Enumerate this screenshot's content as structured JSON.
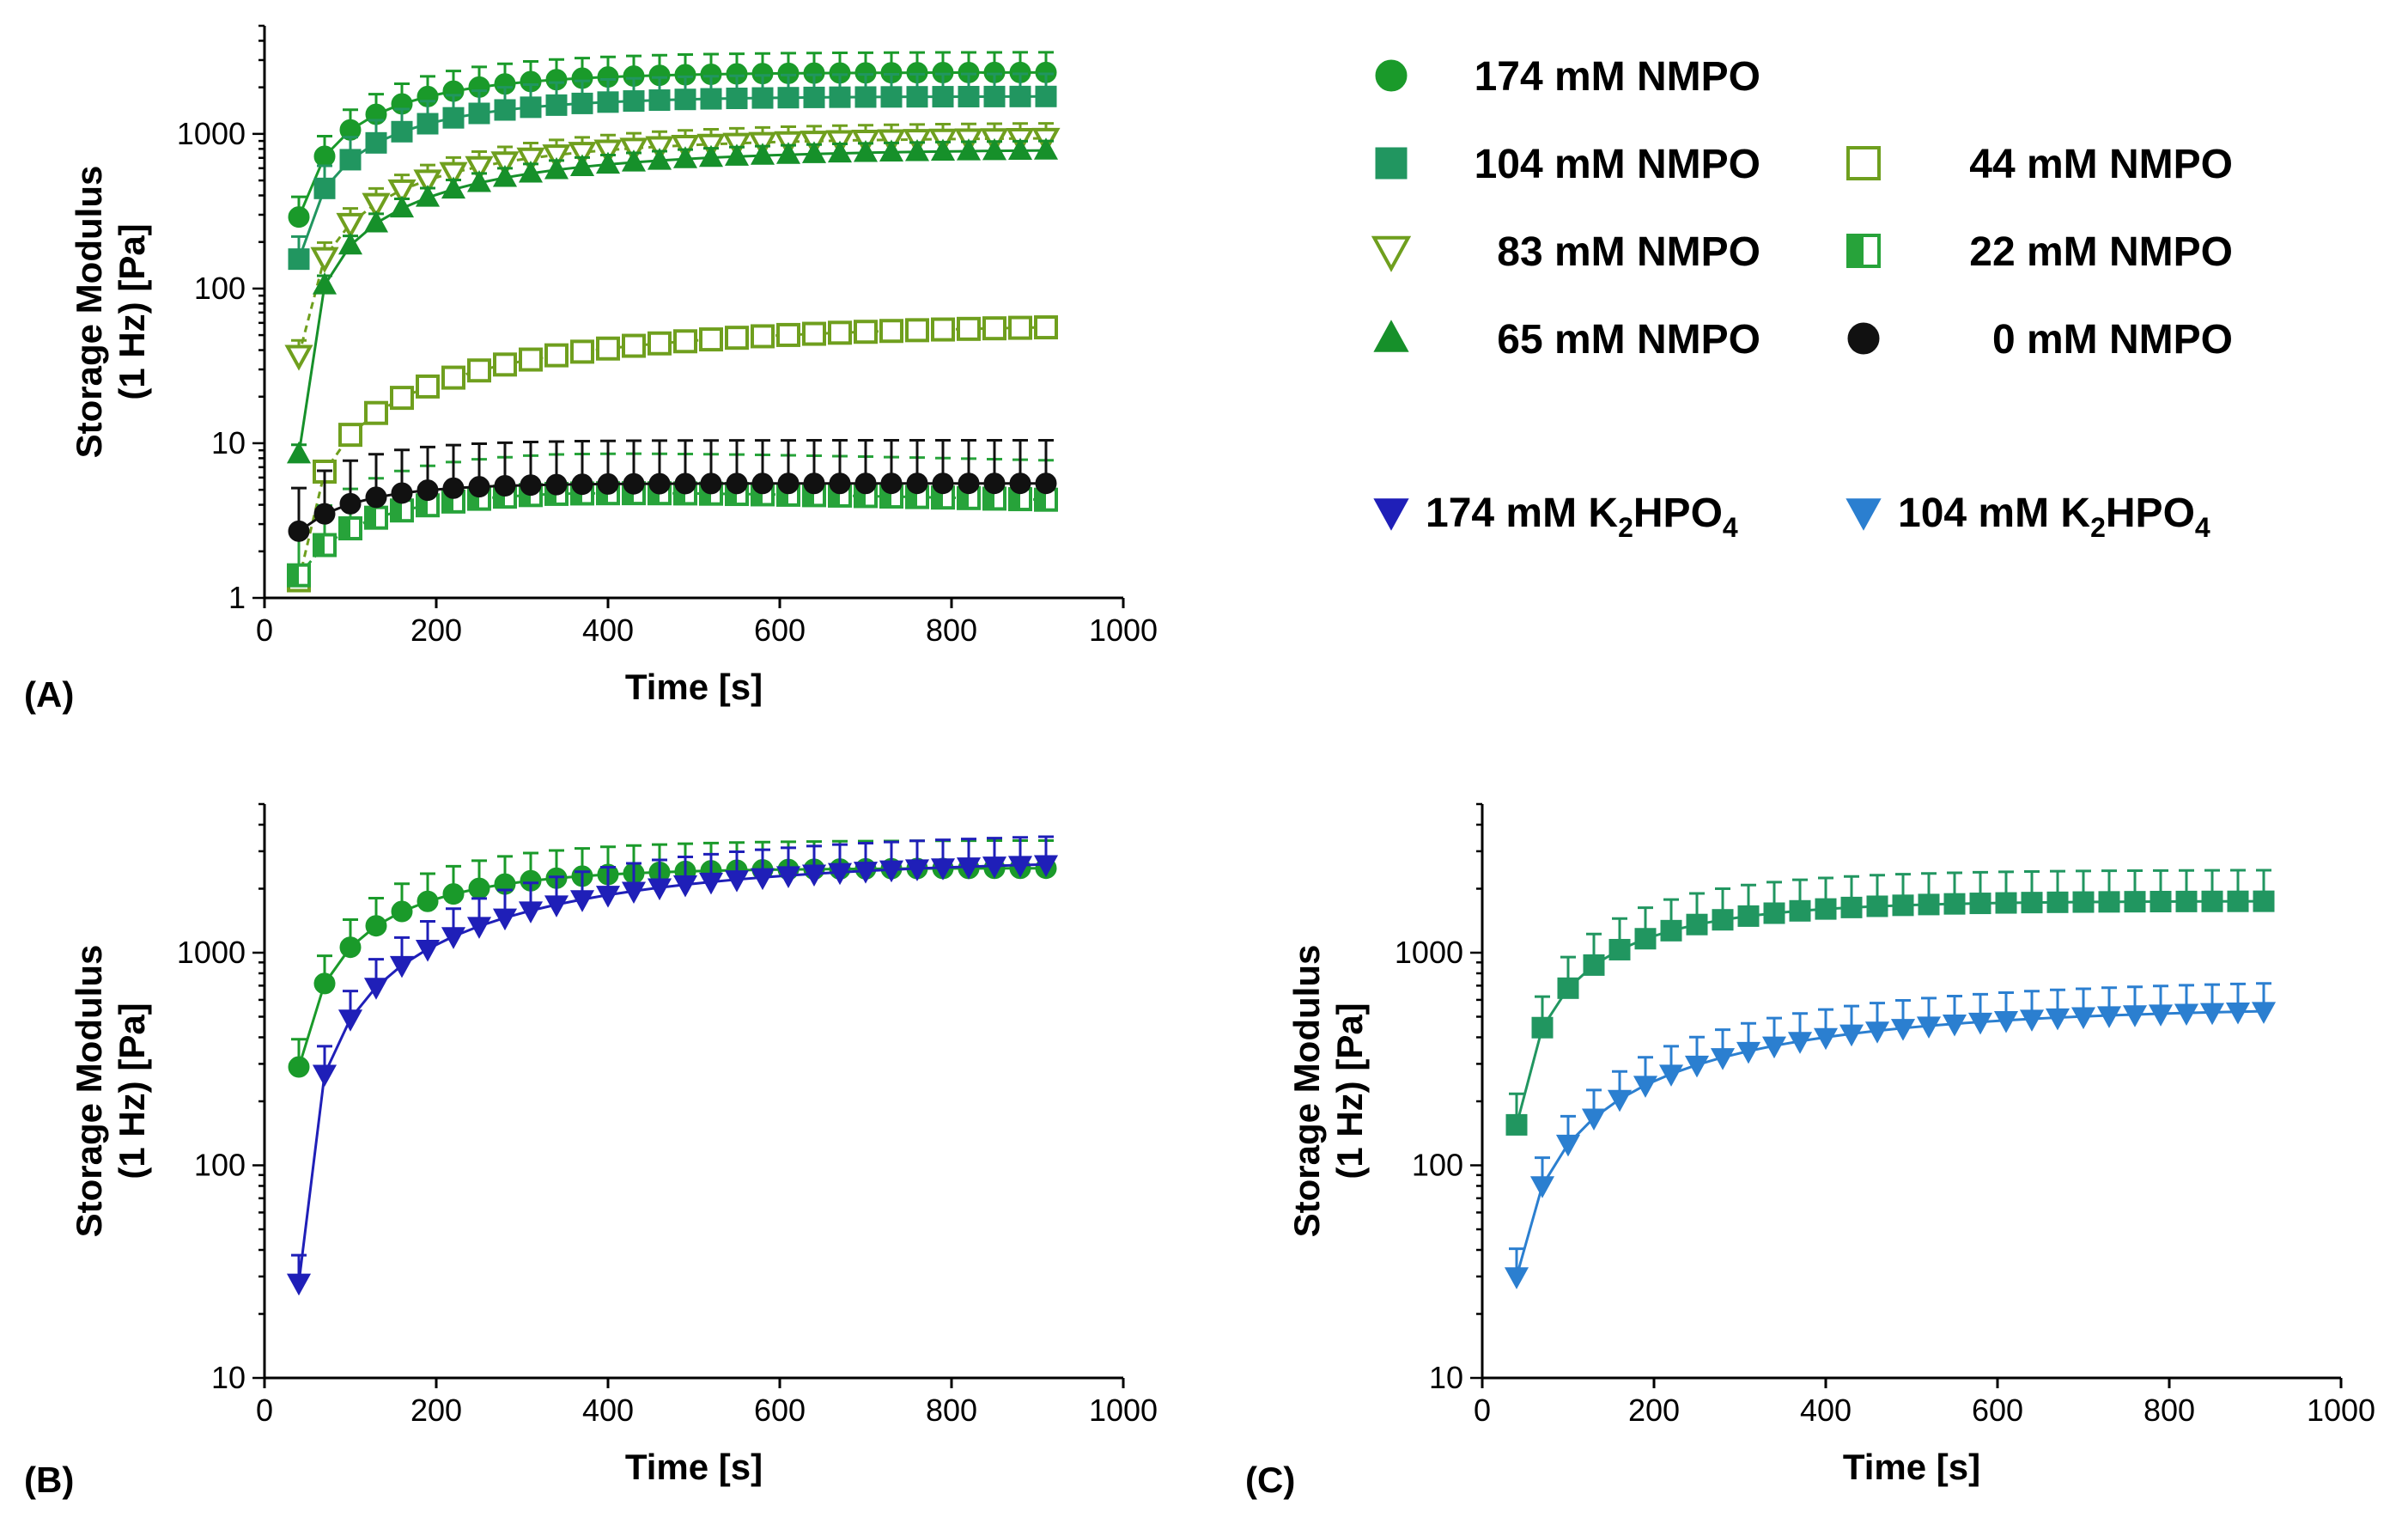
{
  "figure": {
    "panel_labels": [
      "(A)",
      "(B)",
      "(C)"
    ]
  },
  "legend": {
    "items": [
      {
        "label": "174 mM NMPO",
        "marker": "circle",
        "filled": true,
        "color": "#1a9a2a"
      },
      {
        "label": "104 mM NMPO",
        "marker": "square",
        "filled": true,
        "color": "#219660"
      },
      {
        "label": "44 mM NMPO",
        "marker": "square",
        "filled": false,
        "color": "#6f9f1e"
      },
      {
        "label": "83 mM NMPO",
        "marker": "triangle-down",
        "filled": false,
        "color": "#6f9f1e"
      },
      {
        "label": "22 mM NMPO",
        "marker": "square-half",
        "filled": false,
        "color": "#27a33a"
      },
      {
        "label": "65 mM NMPO",
        "marker": "triangle-up",
        "filled": true,
        "color": "#16902a"
      },
      {
        "label": "0 mM NMPO",
        "marker": "circle",
        "filled": true,
        "color": "#111111"
      }
    ],
    "salt_items": [
      {
        "label_main": "174 mM K",
        "sub1": "2",
        "mid": "HPO",
        "sub2": "4",
        "marker": "triangle-down",
        "filled": true,
        "color": "#1f1fb8"
      },
      {
        "label_main": "104 mM K",
        "sub1": "2",
        "mid": "HPO",
        "sub2": "4",
        "marker": "triangle-down",
        "filled": true,
        "color": "#2b7fd0"
      }
    ]
  },
  "chart_data": [
    {
      "panel": "(A)",
      "type": "scatter",
      "xlabel": "Time [s]",
      "ylabel_line1": "Storage Modulus",
      "ylabel_line2": "(1 Hz) [Pa]",
      "xlim": [
        0,
        1000
      ],
      "ylim": [
        1,
        5000
      ],
      "yscale": "log",
      "x_ticks": [
        "0",
        "200",
        "400",
        "600",
        "800",
        "1000"
      ],
      "y_ticks": [
        "1",
        "10",
        "100",
        "1000"
      ],
      "series": [
        {
          "name": "174 mM NMPO",
          "A": 2500,
          "k": 140,
          "y0": 290,
          "err": 0.35
        },
        {
          "name": "104 mM NMPO",
          "A": 1750,
          "k": 150,
          "y0": 155,
          "err": 0.4
        },
        {
          "name": "83 mM NMPO",
          "A": 950,
          "k": 210,
          "y0": 37,
          "err": 0.25
        },
        {
          "name": "65 mM NMPO",
          "A": 800,
          "k": 230,
          "y0": 8.5,
          "err": 0.15
        },
        {
          "name": "44 mM NMPO",
          "A": 60,
          "k": 320,
          "y0": 1.3,
          "err": 0.12
        },
        {
          "name": "22 mM NMPO",
          "A": 4.5,
          "k": 120,
          "y0": 1.4,
          "err": 0.8,
          "peak": 5.0
        },
        {
          "name": "0 mM NMPO",
          "A": 5.5,
          "k": 90,
          "y0": 2.7,
          "err": 0.9
        }
      ]
    },
    {
      "panel": "(B)",
      "type": "scatter",
      "xlabel": "Time [s]",
      "ylabel_line1": "Storage Modulus",
      "ylabel_line2": "(1 Hz) [Pa]",
      "xlim": [
        0,
        1000
      ],
      "ylim": [
        10,
        5000
      ],
      "yscale": "log",
      "x_ticks": [
        "0",
        "200",
        "400",
        "600",
        "800",
        "1000"
      ],
      "y_ticks": [
        "10",
        "100",
        "1000"
      ],
      "series": [
        {
          "name": "174 mM NMPO",
          "A": 2500,
          "k": 140,
          "y0": 290,
          "err": 0.35
        },
        {
          "name": "174 mM K2HPO4",
          "A": 2800,
          "k": 330,
          "y0": 28,
          "err": 0.35
        }
      ]
    },
    {
      "panel": "(C)",
      "type": "scatter",
      "xlabel": "Time [s]",
      "ylabel_line1": "Storage Modulus",
      "ylabel_line2": "(1 Hz) [Pa]",
      "xlim": [
        0,
        1000
      ],
      "ylim": [
        10,
        5000
      ],
      "yscale": "log",
      "x_ticks": [
        "0",
        "200",
        "400",
        "600",
        "800",
        "1000"
      ],
      "y_ticks": [
        "10",
        "100",
        "1000"
      ],
      "series": [
        {
          "name": "104 mM NMPO",
          "A": 1750,
          "k": 150,
          "y0": 155,
          "err": 0.4
        },
        {
          "name": "104 mM K2HPO4",
          "A": 560,
          "k": 300,
          "y0": 30,
          "err": 0.35
        }
      ]
    }
  ]
}
